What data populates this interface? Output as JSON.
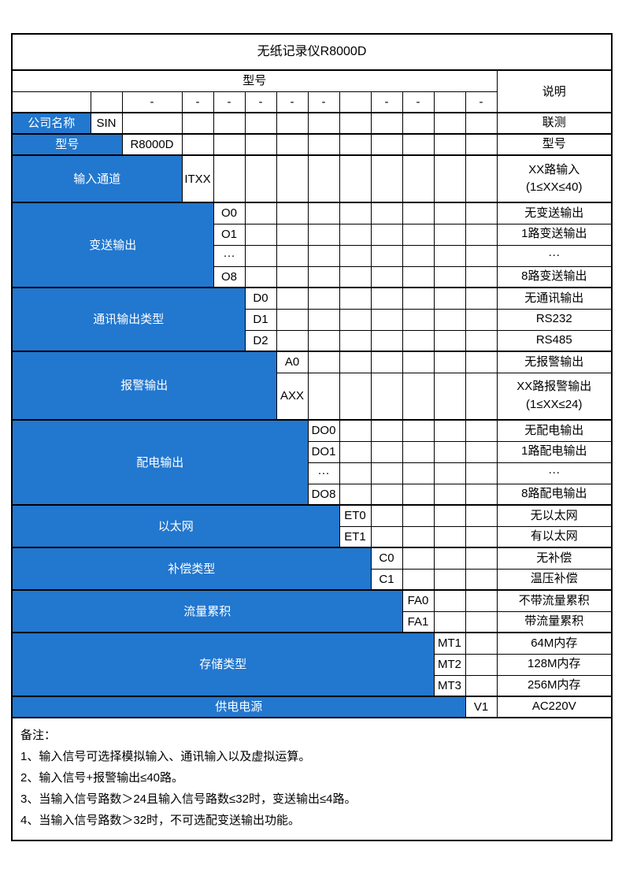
{
  "title": "无纸记录仪R8000D",
  "header": {
    "model_label": "型号",
    "desc_label": "说明"
  },
  "dash_row": [
    "",
    "",
    "-",
    "-",
    "-",
    "-",
    "-",
    "-",
    "",
    "-",
    "-",
    "",
    "-"
  ],
  "sections": [
    {
      "label": "公司名称",
      "label_span": 1,
      "rows": [
        {
          "code": "SIN",
          "desc": "联测"
        }
      ]
    },
    {
      "label": "型号",
      "label_span": 2,
      "rows": [
        {
          "code": "R8000D",
          "desc": "型号"
        }
      ]
    },
    {
      "label": "输入通道",
      "label_span": 3,
      "rows": [
        {
          "code": "ITXX",
          "desc": "XX路输入\n(1≤XX≤40)"
        }
      ]
    },
    {
      "label": "变送输出",
      "label_span": 4,
      "rows": [
        {
          "code": "O0",
          "desc": "无变送输出"
        },
        {
          "code": "O1",
          "desc": "1路变送输出"
        },
        {
          "code": "···",
          "desc": "···"
        },
        {
          "code": "O8",
          "desc": "8路变送输出"
        }
      ]
    },
    {
      "label": "通讯输出类型",
      "label_span": 5,
      "rows": [
        {
          "code": "D0",
          "desc": "无通讯输出"
        },
        {
          "code": "D1",
          "desc": "RS232"
        },
        {
          "code": "D2",
          "desc": "RS485"
        }
      ]
    },
    {
      "label": "报警输出",
      "label_span": 6,
      "rows": [
        {
          "code": "A0",
          "desc": "无报警输出"
        },
        {
          "code": "AXX",
          "desc": "XX路报警输出\n(1≤XX≤24)"
        }
      ]
    },
    {
      "label": "配电输出",
      "label_span": 7,
      "rows": [
        {
          "code": "DO0",
          "desc": "无配电输出"
        },
        {
          "code": "DO1",
          "desc": "1路配电输出"
        },
        {
          "code": "···",
          "desc": "···"
        },
        {
          "code": "DO8",
          "desc": "8路配电输出"
        }
      ]
    },
    {
      "label": "以太网",
      "label_span": 8,
      "rows": [
        {
          "code": "ET0",
          "desc": "无以太网"
        },
        {
          "code": "ET1",
          "desc": "有以太网"
        }
      ]
    },
    {
      "label": "补偿类型",
      "label_span": 9,
      "rows": [
        {
          "code": "C0",
          "desc": "无补偿"
        },
        {
          "code": "C1",
          "desc": "温压补偿"
        }
      ]
    },
    {
      "label": "流量累积",
      "label_span": 10,
      "rows": [
        {
          "code": "FA0",
          "desc": "不带流量累积"
        },
        {
          "code": "FA1",
          "desc": "带流量累积"
        }
      ]
    },
    {
      "label": "存储类型",
      "label_span": 11,
      "rows": [
        {
          "code": "MT1",
          "desc": "64M内存"
        },
        {
          "code": "MT2",
          "desc": "128M内存"
        },
        {
          "code": "MT3",
          "desc": "256M内存"
        }
      ]
    },
    {
      "label": "供电电源",
      "label_span": 12,
      "rows": [
        {
          "code": "V1",
          "desc": "AC220V"
        }
      ]
    }
  ],
  "notes": {
    "heading": "备注：",
    "items": [
      "1、输入信号可选择模拟输入、通讯输入以及虚拟运算。",
      "2、输入信号+报警输出≤40路。",
      "3、当输入信号路数＞24且输入信号路数≤32时，变送输出≤4路。",
      "4、当输入信号路数＞32时，不可选配变送输出功能。"
    ]
  },
  "colors": {
    "section_blue": "#2277ce",
    "border": "#000000",
    "label_text": "#ffffff",
    "body_text": "#000000"
  }
}
